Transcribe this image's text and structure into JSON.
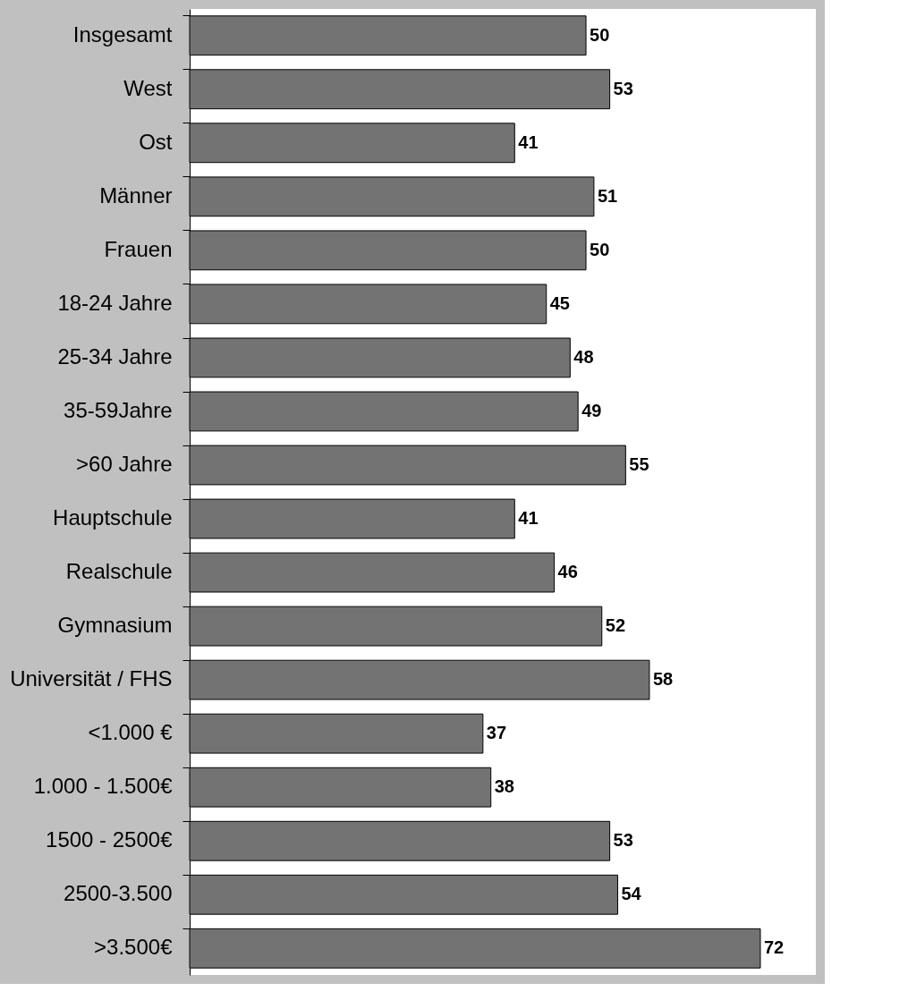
{
  "chart_data": {
    "type": "bar",
    "orientation": "horizontal",
    "categories": [
      "Insgesamt",
      "West",
      "Ost",
      "Männer",
      "Frauen",
      "18-24 Jahre",
      "25-34 Jahre",
      "35-59Jahre",
      ">60 Jahre",
      "Hauptschule",
      "Realschule",
      "Gymnasium",
      "Universität / FHS",
      "<1.000 €",
      "1.000 - 1.500€",
      "1500 - 2500€",
      "2500-3.500",
      ">3.500€"
    ],
    "values": [
      50,
      53,
      41,
      51,
      50,
      45,
      48,
      49,
      55,
      41,
      46,
      52,
      58,
      37,
      38,
      53,
      54,
      72
    ],
    "color": "#737373",
    "xlim": [
      0,
      79
    ],
    "data_labels": true,
    "tick_labels": "y"
  }
}
